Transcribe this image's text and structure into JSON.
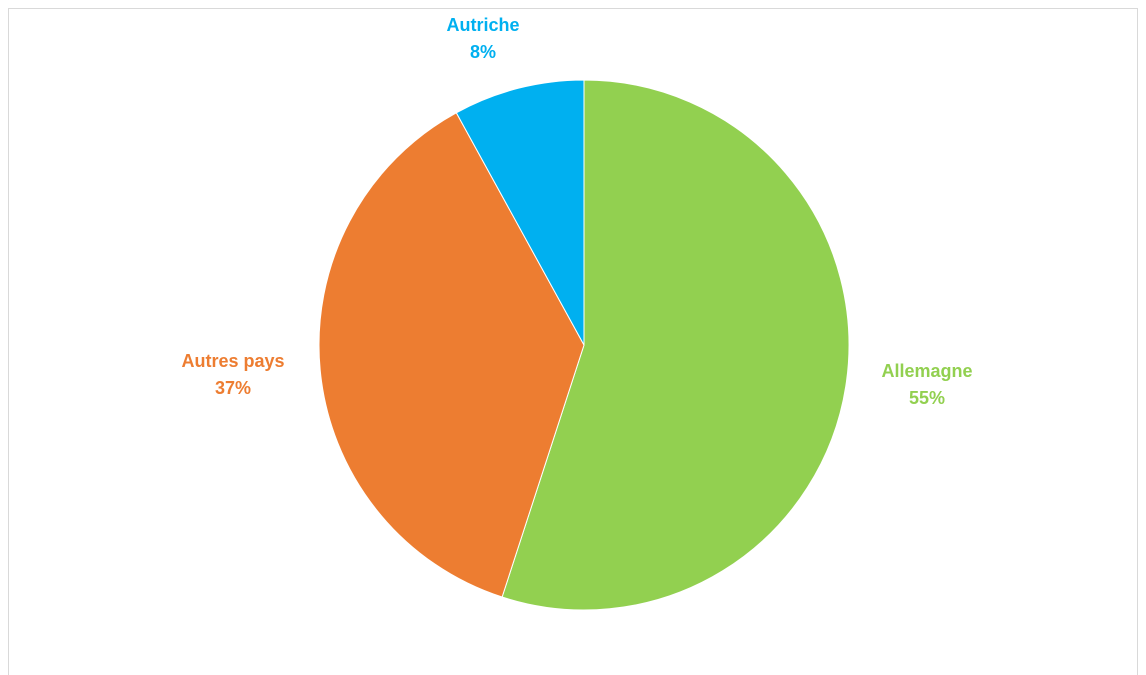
{
  "chart_data": {
    "type": "pie",
    "title": "",
    "slices": [
      {
        "label": "Allemagne",
        "value": 55,
        "percent_label": "55%",
        "color": "#92D050"
      },
      {
        "label": "Autres pays",
        "value": 37,
        "percent_label": "37%",
        "color": "#ED7D31"
      },
      {
        "label": "Autriche",
        "value": 8,
        "percent_label": "8%",
        "color": "#00B0F0"
      }
    ],
    "legend": "none",
    "start_angle_deg": 0,
    "direction": "clockwise",
    "data_labels": "outside-end, category name and percentage, colored as slice"
  }
}
